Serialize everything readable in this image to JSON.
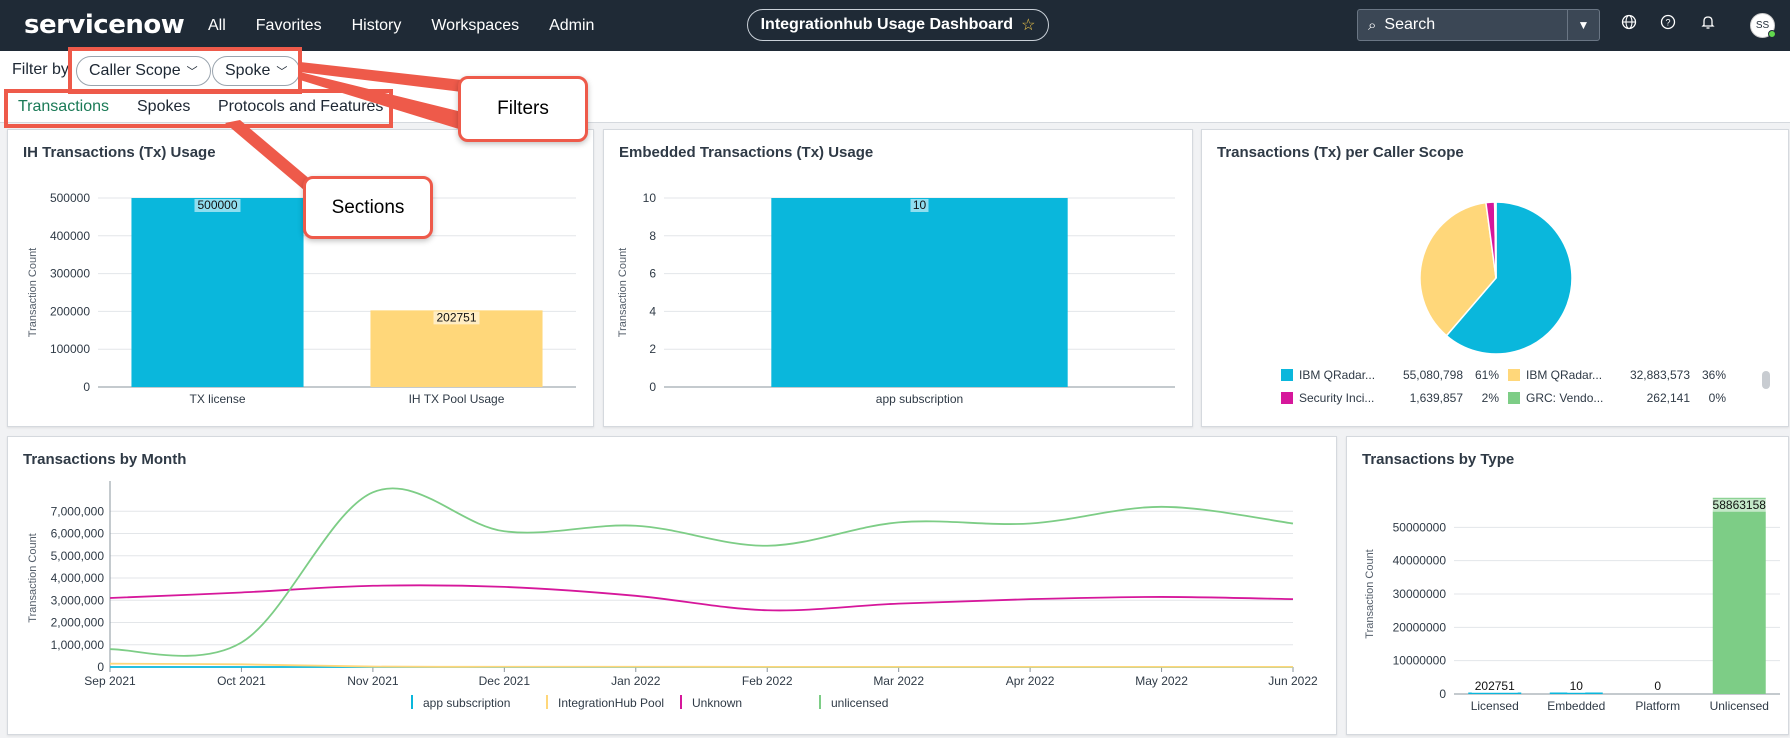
{
  "header": {
    "logo": "servicenow",
    "nav": [
      "All",
      "Favorites",
      "History",
      "Workspaces",
      "Admin"
    ],
    "dashboard_title": "Integrationhub Usage Dashboard",
    "search_placeholder": "Search",
    "avatar_initials": "SS",
    "icons": [
      "globe-icon",
      "help-icon",
      "bell-icon"
    ]
  },
  "filters": {
    "label": "Filter by",
    "chips": [
      "Caller Scope",
      "Spoke"
    ]
  },
  "tabs": [
    "Transactions",
    "Spokes",
    "Protocols and Features"
  ],
  "annotations": {
    "filters": "Filters",
    "sections": "Sections"
  },
  "colors": {
    "blue": "#0ab7dc",
    "yellow": "#ffd77a",
    "magenta": "#d6179b",
    "green": "#7dcd86"
  },
  "cards": {
    "ih_usage": {
      "title": "IH Transactions (Tx) Usage",
      "chart_data": {
        "type": "bar",
        "categories": [
          "TX license",
          "IH TX Pool Usage"
        ],
        "values": [
          500000,
          202751
        ],
        "data_labels": [
          "500000",
          "202751"
        ],
        "ylabel": "Transaction Count",
        "ylim": [
          0,
          500000
        ],
        "yticks": [
          "0",
          "100000",
          "200000",
          "300000",
          "400000",
          "500000"
        ]
      }
    },
    "embedded_usage": {
      "title": "Embedded Transactions (Tx) Usage",
      "chart_data": {
        "type": "bar",
        "categories": [
          "app subscription"
        ],
        "values": [
          10
        ],
        "data_labels": [
          "10"
        ],
        "ylabel": "Transaction Count",
        "ylim": [
          0,
          10
        ],
        "yticks": [
          "0",
          "2",
          "4",
          "6",
          "8",
          "10"
        ]
      }
    },
    "caller_scope": {
      "title": "Transactions (Tx) per Caller Scope",
      "chart_data": {
        "type": "pie",
        "slices": [
          {
            "name": "IBM QRadar...",
            "value": 55080798,
            "value_label": "55,080,798",
            "pct": "61%"
          },
          {
            "name": "IBM QRadar...",
            "value": 32883573,
            "value_label": "32,883,573",
            "pct": "36%"
          },
          {
            "name": "Security Inci...",
            "value": 1639857,
            "value_label": "1,639,857",
            "pct": "2%"
          },
          {
            "name": "GRC: Vendo...",
            "value": 262141,
            "value_label": "262,141",
            "pct": "0%"
          }
        ]
      }
    },
    "by_month": {
      "title": "Transactions by Month",
      "chart_data": {
        "type": "line",
        "x": [
          "Sep 2021",
          "Oct 2021",
          "Nov 2021",
          "Dec 2021",
          "Jan 2022",
          "Feb 2022",
          "Mar 2022",
          "Apr 2022",
          "May 2022",
          "Jun 2022"
        ],
        "ylabel": "Transaction Count",
        "ylim": [
          0,
          8000000
        ],
        "yticks": [
          "0",
          "1,000,000",
          "2,000,000",
          "3,000,000",
          "4,000,000",
          "5,000,000",
          "6,000,000",
          "7,000,000"
        ],
        "series": [
          {
            "name": "app subscription",
            "values": [
              0,
              0,
              0,
              0,
              0,
              0,
              0,
              0,
              0,
              0
            ]
          },
          {
            "name": "IntegrationHub Pool",
            "values": [
              150000,
              120000,
              20000,
              10000,
              10000,
              5000,
              5000,
              5000,
              5000,
              5000
            ]
          },
          {
            "name": "Unknown",
            "values": [
              3100000,
              3350000,
              3650000,
              3600000,
              3200000,
              2550000,
              2850000,
              3050000,
              3150000,
              3050000
            ]
          },
          {
            "name": "unlicensed",
            "values": [
              800000,
              1100000,
              7850000,
              6100000,
              6350000,
              5450000,
              6500000,
              6450000,
              7200000,
              6450000
            ]
          }
        ]
      }
    },
    "by_type": {
      "title": "Transactions by Type",
      "chart_data": {
        "type": "bar",
        "categories": [
          "Licensed",
          "Embedded",
          "Platform",
          "Unlicensed"
        ],
        "values": [
          202751,
          10,
          0,
          58863158
        ],
        "data_labels": [
          "202751",
          "10",
          "0",
          "58863158"
        ],
        "ylabel": "Transaction Count",
        "ylim": [
          0,
          60000000
        ],
        "yticks": [
          "0",
          "10000000",
          "20000000",
          "30000000",
          "40000000",
          "50000000"
        ]
      }
    }
  }
}
